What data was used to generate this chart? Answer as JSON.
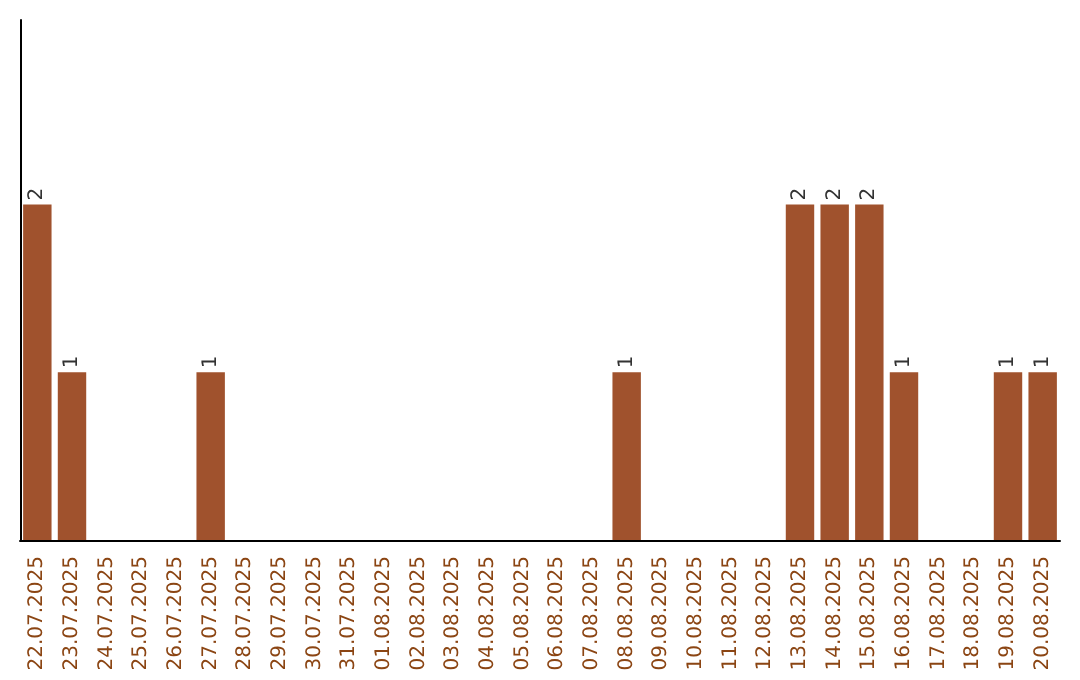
{
  "chart_data": {
    "type": "bar",
    "categories": [
      "22.07.2025",
      "23.07.2025",
      "24.07.2025",
      "25.07.2025",
      "26.07.2025",
      "27.07.2025",
      "28.07.2025",
      "29.07.2025",
      "30.07.2025",
      "31.07.2025",
      "01.08.2025",
      "02.08.2025",
      "03.08.2025",
      "04.08.2025",
      "05.08.2025",
      "06.08.2025",
      "07.08.2025",
      "08.08.2025",
      "09.08.2025",
      "10.08.2025",
      "11.08.2025",
      "12.08.2025",
      "13.08.2025",
      "14.08.2025",
      "15.08.2025",
      "16.08.2025",
      "17.08.2025",
      "18.08.2025",
      "19.08.2025",
      "20.08.2025"
    ],
    "values": [
      2,
      1,
      0,
      0,
      0,
      1,
      0,
      0,
      0,
      0,
      0,
      0,
      0,
      0,
      0,
      0,
      0,
      1,
      0,
      0,
      0,
      0,
      2,
      2,
      2,
      1,
      0,
      0,
      1,
      1
    ],
    "value_labels": [
      "2",
      "1",
      null,
      null,
      null,
      "1",
      null,
      null,
      null,
      null,
      null,
      null,
      null,
      null,
      null,
      null,
      null,
      "1",
      null,
      null,
      null,
      null,
      "2",
      "2",
      "2",
      "1",
      null,
      null,
      "1",
      "1"
    ],
    "color": "#a0522d",
    "ylim": [
      0,
      3.1
    ],
    "tick_labels": "x"
  }
}
